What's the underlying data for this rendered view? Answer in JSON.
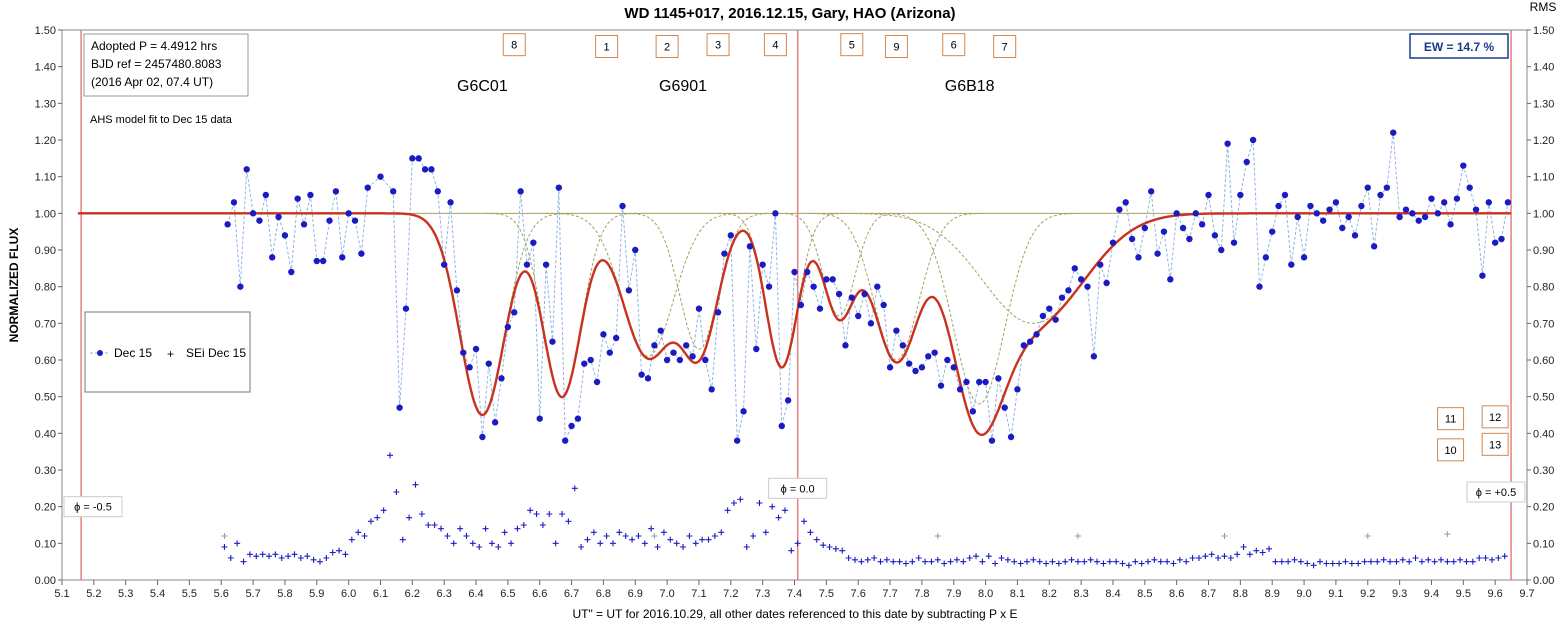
{
  "chart_data": {
    "type": "scatter",
    "title": "WD 1145+017, 2016.12.15, Gary, HAO (Arizona)",
    "xlabel": "UT\" = UT for 2016.10.29, all other dates referenced to this date by subtracting P x E",
    "ylabel": "NORMALIZED FLUX",
    "y2label": "RMS",
    "xlim": [
      5.1,
      9.7
    ],
    "ylim": [
      0.0,
      1.5
    ],
    "x_ticks": [
      "5.1",
      "5.2",
      "5.3",
      "5.4",
      "5.5",
      "5.6",
      "5.7",
      "5.8",
      "5.9",
      "6.0",
      "6.1",
      "6.2",
      "6.3",
      "6.4",
      "6.5",
      "6.6",
      "6.7",
      "6.8",
      "6.9",
      "7.0",
      "7.1",
      "7.2",
      "7.3",
      "7.4",
      "7.5",
      "7.6",
      "7.7",
      "7.8",
      "7.9",
      "8.0",
      "8.1",
      "8.2",
      "8.3",
      "8.4",
      "8.5",
      "8.6",
      "8.7",
      "8.8",
      "8.9",
      "9.0",
      "9.1",
      "9.2",
      "9.3",
      "9.4",
      "9.5",
      "9.6",
      "9.7"
    ],
    "y_ticks": [
      "0.00",
      "0.10",
      "0.20",
      "0.30",
      "0.40",
      "0.50",
      "0.60",
      "0.70",
      "0.80",
      "0.90",
      "1.00",
      "1.10",
      "1.20",
      "1.30",
      "1.40",
      "1.50"
    ],
    "info_box": {
      "line1": "Adopted P = 4.4912 hrs",
      "line2": "BJD ref = 2457480.8083",
      "line3": "(2016 Apr 02, 07.4 UT)"
    },
    "model_note": "AHS model fit to Dec 15 data",
    "ew_label": "EW = 14.7 %",
    "legend": {
      "series1": "Dec 15",
      "series2": "SEi Dec 15"
    },
    "object_labels": [
      {
        "text": "G6C01",
        "x": 6.42,
        "y": 1.35
      },
      {
        "text": "G6901",
        "x": 7.05,
        "y": 1.35
      },
      {
        "text": "G6B18",
        "x": 7.95,
        "y": 1.35
      }
    ],
    "dip_boxes": [
      {
        "label": "8",
        "x": 6.52,
        "y": 1.46
      },
      {
        "label": "1",
        "x": 6.81,
        "y": 1.455
      },
      {
        "label": "2",
        "x": 7.0,
        "y": 1.455
      },
      {
        "label": "3",
        "x": 7.16,
        "y": 1.46
      },
      {
        "label": "4",
        "x": 7.34,
        "y": 1.46
      },
      {
        "label": "5",
        "x": 7.58,
        "y": 1.46
      },
      {
        "label": "9",
        "x": 7.72,
        "y": 1.455
      },
      {
        "label": "6",
        "x": 7.9,
        "y": 1.46
      },
      {
        "label": "7",
        "x": 8.06,
        "y": 1.455
      },
      {
        "label": "11",
        "x": 9.46,
        "y": 0.44
      },
      {
        "label": "12",
        "x": 9.6,
        "y": 0.445
      },
      {
        "label": "10",
        "x": 9.46,
        "y": 0.355
      },
      {
        "label": "13",
        "x": 9.6,
        "y": 0.37
      }
    ],
    "phase_markers": [
      {
        "label": "ϕ = -0.5",
        "x": 5.16
      },
      {
        "label": "ϕ = 0.0",
        "x": 7.41
      },
      {
        "label": "ϕ = +0.5",
        "x": 9.65
      }
    ],
    "flux_x": [
      5.62,
      5.64,
      5.66,
      5.68,
      5.7,
      5.72,
      5.74,
      5.76,
      5.78,
      5.8,
      5.82,
      5.84,
      5.86,
      5.88,
      5.9,
      5.92,
      5.94,
      5.96,
      5.98,
      6.0,
      6.02,
      6.04,
      6.06,
      6.1,
      6.14,
      6.16,
      6.18,
      6.2,
      6.22,
      6.24,
      6.26,
      6.28,
      6.3,
      6.32,
      6.34,
      6.36,
      6.38,
      6.4,
      6.42,
      6.44,
      6.46,
      6.48,
      6.5,
      6.52,
      6.54,
      6.56,
      6.58,
      6.6,
      6.62,
      6.64,
      6.66,
      6.68,
      6.7,
      6.72,
      6.74,
      6.76,
      6.78,
      6.8,
      6.82,
      6.84,
      6.86,
      6.88,
      6.9,
      6.92,
      6.94,
      6.96,
      6.98,
      7.0,
      7.02,
      7.04,
      7.06,
      7.08,
      7.1,
      7.12,
      7.14,
      7.16,
      7.18,
      7.2,
      7.22,
      7.24,
      7.26,
      7.28,
      7.3,
      7.32,
      7.34,
      7.36,
      7.38,
      7.4,
      7.42,
      7.44,
      7.46,
      7.48,
      7.5,
      7.52,
      7.54,
      7.56,
      7.58,
      7.6,
      7.62,
      7.64,
      7.66,
      7.68,
      7.7,
      7.72,
      7.74,
      7.76,
      7.78,
      7.8,
      7.82,
      7.84,
      7.86,
      7.88,
      7.9,
      7.92,
      7.94,
      7.96,
      7.98,
      8.0,
      8.02,
      8.04,
      8.06,
      8.08,
      8.1,
      8.12,
      8.14,
      8.16,
      8.18,
      8.2,
      8.22,
      8.24,
      8.26,
      8.28,
      8.3,
      8.32,
      8.34,
      8.36,
      8.38,
      8.4,
      8.42,
      8.44,
      8.46,
      8.48,
      8.5,
      8.52,
      8.54,
      8.56,
      8.58,
      8.6,
      8.62,
      8.64,
      8.66,
      8.68,
      8.7,
      8.72,
      8.74,
      8.76,
      8.78,
      8.8,
      8.82,
      8.84,
      8.86,
      8.88,
      8.9,
      8.92,
      8.94,
      8.96,
      8.98,
      9.0,
      9.02,
      9.04,
      9.06,
      9.08,
      9.1,
      9.12,
      9.14,
      9.16,
      9.18,
      9.2,
      9.22,
      9.24,
      9.26,
      9.28,
      9.3,
      9.32,
      9.34,
      9.36,
      9.38,
      9.4,
      9.42,
      9.44,
      9.46,
      9.48,
      9.5,
      9.52,
      9.54,
      9.56,
      9.58,
      9.6,
      9.62,
      9.64
    ],
    "flux_y": [
      0.97,
      1.03,
      0.8,
      1.12,
      1.0,
      0.98,
      1.05,
      0.88,
      0.99,
      0.94,
      0.84,
      1.04,
      0.97,
      1.05,
      0.87,
      0.87,
      0.98,
      1.06,
      0.88,
      1.0,
      0.98,
      0.89,
      1.07,
      1.1,
      1.06,
      0.47,
      0.74,
      1.15,
      1.15,
      1.12,
      1.12,
      1.06,
      0.86,
      1.03,
      0.79,
      0.62,
      0.58,
      0.63,
      0.39,
      0.59,
      0.43,
      0.55,
      0.69,
      0.73,
      1.06,
      0.86,
      0.92,
      0.44,
      0.86,
      0.65,
      1.07,
      0.38,
      0.42,
      0.44,
      0.59,
      0.6,
      0.54,
      0.67,
      0.62,
      0.66,
      1.02,
      0.79,
      0.9,
      0.56,
      0.55,
      0.64,
      0.68,
      0.6,
      0.62,
      0.6,
      0.64,
      0.61,
      0.74,
      0.6,
      0.52,
      0.73,
      0.89,
      0.94,
      0.38,
      0.46,
      0.91,
      0.63,
      0.86,
      0.8,
      1.0,
      0.42,
      0.49,
      0.84,
      0.75,
      0.84,
      0.8,
      0.74,
      0.82,
      0.82,
      0.78,
      0.64,
      0.77,
      0.72,
      0.78,
      0.7,
      0.8,
      0.75,
      0.58,
      0.68,
      0.64,
      0.59,
      0.57,
      0.58,
      0.61,
      0.62,
      0.53,
      0.6,
      0.58,
      0.52,
      0.54,
      0.46,
      0.54,
      0.54,
      0.38,
      0.55,
      0.47,
      0.39,
      0.52,
      0.64,
      0.65,
      0.67,
      0.72,
      0.74,
      0.71,
      0.77,
      0.79,
      0.85,
      0.82,
      0.8,
      0.61,
      0.86,
      0.81,
      0.92,
      1.01,
      1.03,
      0.93,
      0.88,
      0.96,
      1.06,
      0.89,
      0.95,
      0.82,
      1.0,
      0.96,
      0.93,
      1.0,
      0.97,
      1.05,
      0.94,
      0.9,
      1.19,
      0.92,
      1.05,
      1.14,
      1.2,
      0.8,
      0.88,
      0.95,
      1.02,
      1.05,
      0.86,
      0.99,
      0.88,
      1.02,
      1.0,
      0.98,
      1.01,
      1.03,
      0.96,
      0.99,
      0.94,
      1.02,
      1.07,
      0.91,
      1.05,
      1.07,
      1.22,
      0.99,
      1.01,
      1.0,
      0.98,
      0.99,
      1.04,
      1.0,
      1.03,
      0.97,
      1.04,
      1.13,
      1.07,
      1.01,
      0.83,
      1.03,
      0.92,
      0.93,
      1.03,
      1.04
    ],
    "sei_x": [
      5.61,
      5.63,
      5.65,
      5.67,
      5.69,
      5.71,
      5.73,
      5.75,
      5.77,
      5.79,
      5.81,
      5.83,
      5.85,
      5.87,
      5.89,
      5.91,
      5.93,
      5.95,
      5.97,
      5.99,
      6.01,
      6.03,
      6.05,
      6.07,
      6.09,
      6.11,
      6.13,
      6.15,
      6.17,
      6.19,
      6.21,
      6.23,
      6.25,
      6.27,
      6.29,
      6.31,
      6.33,
      6.35,
      6.37,
      6.39,
      6.41,
      6.43,
      6.45,
      6.47,
      6.49,
      6.51,
      6.53,
      6.55,
      6.57,
      6.59,
      6.61,
      6.63,
      6.65,
      6.67,
      6.69,
      6.71,
      6.73,
      6.75,
      6.77,
      6.79,
      6.81,
      6.83,
      6.85,
      6.87,
      6.89,
      6.91,
      6.93,
      6.95,
      6.97,
      6.99,
      7.01,
      7.03,
      7.05,
      7.07,
      7.09,
      7.11,
      7.13,
      7.15,
      7.17,
      7.19,
      7.21,
      7.23,
      7.25,
      7.27,
      7.29,
      7.31,
      7.33,
      7.35,
      7.37,
      7.39,
      7.41,
      7.43,
      7.45,
      7.47,
      7.49,
      7.51,
      7.53,
      7.55,
      7.57,
      7.59,
      7.61,
      7.63,
      7.65,
      7.67,
      7.69,
      7.71,
      7.73,
      7.75,
      7.77,
      7.79,
      7.81,
      7.83,
      7.85,
      7.87,
      7.89,
      7.91,
      7.93,
      7.95,
      7.97,
      7.99,
      8.01,
      8.03,
      8.05,
      8.07,
      8.09,
      8.11,
      8.13,
      8.15,
      8.17,
      8.19,
      8.21,
      8.23,
      8.25,
      8.27,
      8.29,
      8.31,
      8.33,
      8.35,
      8.37,
      8.39,
      8.41,
      8.43,
      8.45,
      8.47,
      8.49,
      8.51,
      8.53,
      8.55,
      8.57,
      8.59,
      8.61,
      8.63,
      8.65,
      8.67,
      8.69,
      8.71,
      8.73,
      8.75,
      8.77,
      8.79,
      8.81,
      8.83,
      8.85,
      8.87,
      8.89,
      8.91,
      8.93,
      8.95,
      8.97,
      8.99,
      9.01,
      9.03,
      9.05,
      9.07,
      9.09,
      9.11,
      9.13,
      9.15,
      9.17,
      9.19,
      9.21,
      9.23,
      9.25,
      9.27,
      9.29,
      9.31,
      9.33,
      9.35,
      9.37,
      9.39,
      9.41,
      9.43,
      9.45,
      9.47,
      9.49,
      9.51,
      9.53,
      9.55,
      9.57,
      9.59,
      9.61,
      9.63
    ],
    "sei_y": [
      0.09,
      0.06,
      0.1,
      0.05,
      0.07,
      0.065,
      0.07,
      0.065,
      0.07,
      0.06,
      0.065,
      0.07,
      0.06,
      0.065,
      0.055,
      0.05,
      0.06,
      0.075,
      0.08,
      0.07,
      0.11,
      0.13,
      0.12,
      0.16,
      0.17,
      0.19,
      0.34,
      0.24,
      0.11,
      0.17,
      0.26,
      0.18,
      0.15,
      0.15,
      0.14,
      0.12,
      0.1,
      0.14,
      0.12,
      0.1,
      0.09,
      0.14,
      0.1,
      0.09,
      0.13,
      0.1,
      0.14,
      0.15,
      0.19,
      0.18,
      0.15,
      0.18,
      0.1,
      0.18,
      0.16,
      0.25,
      0.09,
      0.11,
      0.13,
      0.1,
      0.12,
      0.1,
      0.13,
      0.12,
      0.11,
      0.12,
      0.1,
      0.14,
      0.09,
      0.13,
      0.11,
      0.1,
      0.09,
      0.12,
      0.1,
      0.11,
      0.11,
      0.12,
      0.13,
      0.19,
      0.21,
      0.22,
      0.09,
      0.12,
      0.21,
      0.13,
      0.2,
      0.17,
      0.19,
      0.08,
      0.1,
      0.16,
      0.13,
      0.11,
      0.095,
      0.09,
      0.085,
      0.08,
      0.06,
      0.055,
      0.05,
      0.055,
      0.06,
      0.05,
      0.055,
      0.05,
      0.05,
      0.045,
      0.05,
      0.06,
      0.05,
      0.05,
      0.055,
      0.045,
      0.05,
      0.055,
      0.05,
      0.06,
      0.065,
      0.05,
      0.065,
      0.045,
      0.06,
      0.055,
      0.05,
      0.045,
      0.05,
      0.055,
      0.05,
      0.045,
      0.05,
      0.045,
      0.05,
      0.055,
      0.05,
      0.05,
      0.055,
      0.05,
      0.045,
      0.05,
      0.05,
      0.045,
      0.04,
      0.05,
      0.045,
      0.05,
      0.055,
      0.05,
      0.05,
      0.045,
      0.055,
      0.05,
      0.06,
      0.06,
      0.065,
      0.07,
      0.06,
      0.065,
      0.06,
      0.07,
      0.09,
      0.07,
      0.08,
      0.075,
      0.085,
      0.05,
      0.05,
      0.05,
      0.055,
      0.05,
      0.045,
      0.04,
      0.05,
      0.045,
      0.045,
      0.045,
      0.05,
      0.045,
      0.045,
      0.05,
      0.05,
      0.05,
      0.055,
      0.05,
      0.05,
      0.055,
      0.05,
      0.06,
      0.05,
      0.055,
      0.05,
      0.055,
      0.05,
      0.05,
      0.055,
      0.05,
      0.05,
      0.06,
      0.06,
      0.055,
      0.06,
      0.065,
      0.06,
      0.07,
      0.07,
      0.06,
      0.065
    ],
    "sei_outliers_x": [
      5.61,
      6.96,
      7.85,
      8.29,
      8.75,
      9.2,
      9.45
    ],
    "sei_outliers_y": [
      0.12,
      0.12,
      0.12,
      0.12,
      0.12,
      0.12,
      0.125
    ],
    "model_fit": {
      "baseline": 1.0,
      "dips": [
        {
          "center": 6.42,
          "depth": 0.55,
          "width": 0.07
        },
        {
          "center": 6.67,
          "depth": 0.5,
          "width": 0.06
        },
        {
          "center": 6.94,
          "depth": 0.39,
          "width": 0.08
        },
        {
          "center": 7.1,
          "depth": 0.37,
          "width": 0.06
        },
        {
          "center": 7.36,
          "depth": 0.42,
          "width": 0.05
        },
        {
          "center": 7.54,
          "depth": 0.28,
          "width": 0.05
        },
        {
          "center": 7.72,
          "depth": 0.4,
          "width": 0.07
        },
        {
          "center": 7.98,
          "depth": 0.52,
          "width": 0.08
        },
        {
          "center": 8.15,
          "depth": 0.3,
          "width": 0.16
        }
      ]
    },
    "colors": {
      "flux_points": "#1b1bc4",
      "flux_line": "#8fb4e3",
      "model": "#c8321e",
      "components": "#a8a060",
      "sei": "#1b1bc4",
      "phase_lines": "#e88080",
      "box_border": "#d08850",
      "ew_border": "#1a3a8c"
    }
  }
}
